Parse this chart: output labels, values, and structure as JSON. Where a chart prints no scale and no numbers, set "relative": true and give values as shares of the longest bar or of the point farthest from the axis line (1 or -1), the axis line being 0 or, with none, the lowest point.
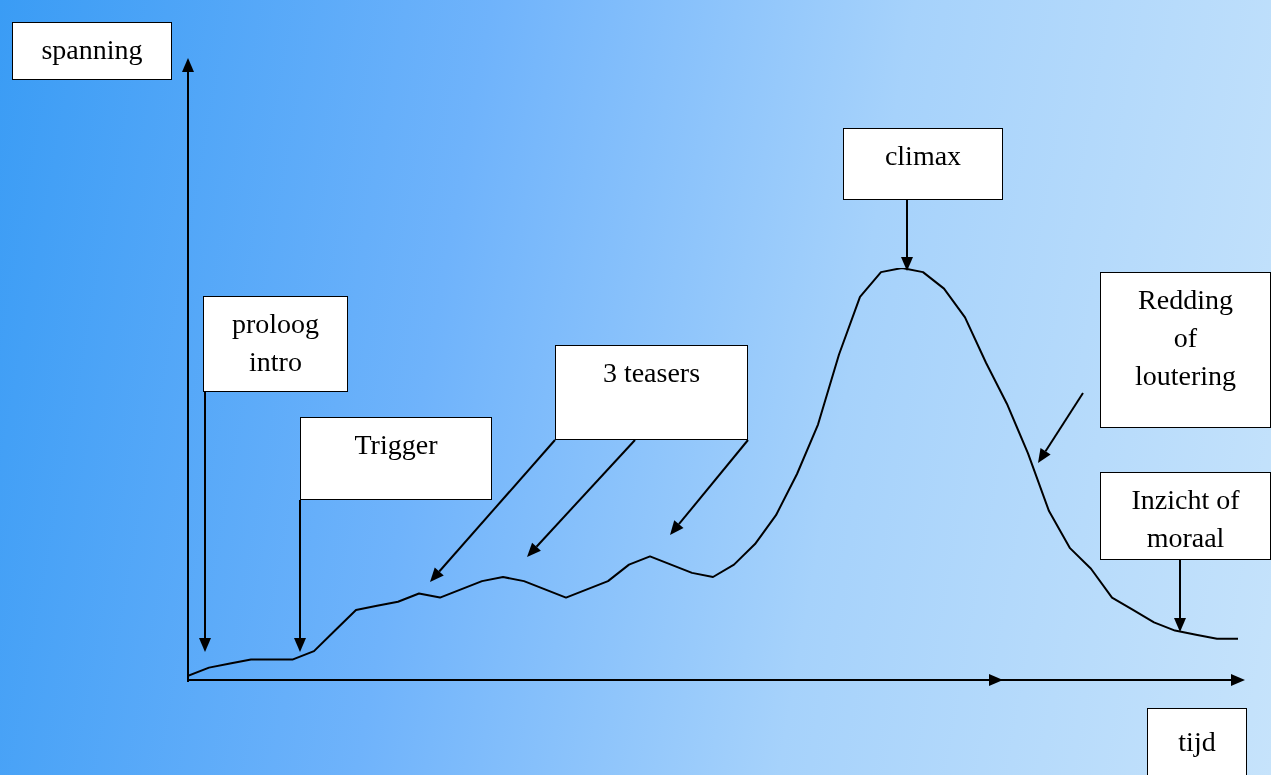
{
  "chart_data": {
    "type": "line",
    "relative": true,
    "xlabel": "tijd",
    "categories": [
      null,
      null,
      null,
      null,
      null,
      null,
      null,
      null,
      null,
      null,
      null,
      null,
      null,
      null,
      null,
      null,
      null,
      null,
      null,
      null,
      null,
      null,
      null,
      null,
      null,
      null,
      null,
      null,
      null,
      null,
      null,
      null,
      null,
      null,
      null,
      null,
      null,
      null,
      null,
      null,
      null,
      null,
      null,
      null,
      null,
      null,
      null,
      null,
      null,
      null,
      null
    ],
    "series": [
      {
        "color": "#000000",
        "values": [
          0.01,
          0.03,
          0.04,
          0.05,
          0.05,
          0.05,
          0.07,
          0.12,
          0.17,
          0.18,
          0.19,
          0.21,
          0.2,
          0.22,
          0.24,
          0.25,
          0.24,
          0.22,
          0.2,
          0.22,
          0.24,
          0.28,
          0.3,
          0.28,
          0.26,
          0.25,
          0.28,
          0.33,
          0.4,
          0.5,
          0.62,
          0.79,
          0.93,
          0.99,
          1,
          0.99,
          0.95,
          0.88,
          0.77,
          0.67,
          0.55,
          0.41,
          0.32,
          0.27,
          0.2,
          0.17,
          0.14,
          0.12,
          0.11,
          0.1,
          0.1
        ]
      }
    ],
    "annotations": [
      "proloog\nintro",
      "Trigger",
      "3 teasers",
      "climax",
      "Redding\nof\nloutering",
      "Inzicht of\nmoraal",
      "spanning"
    ],
    "marker": "none",
    "line_style": "solid",
    "grid": false,
    "legend": false
  }
}
